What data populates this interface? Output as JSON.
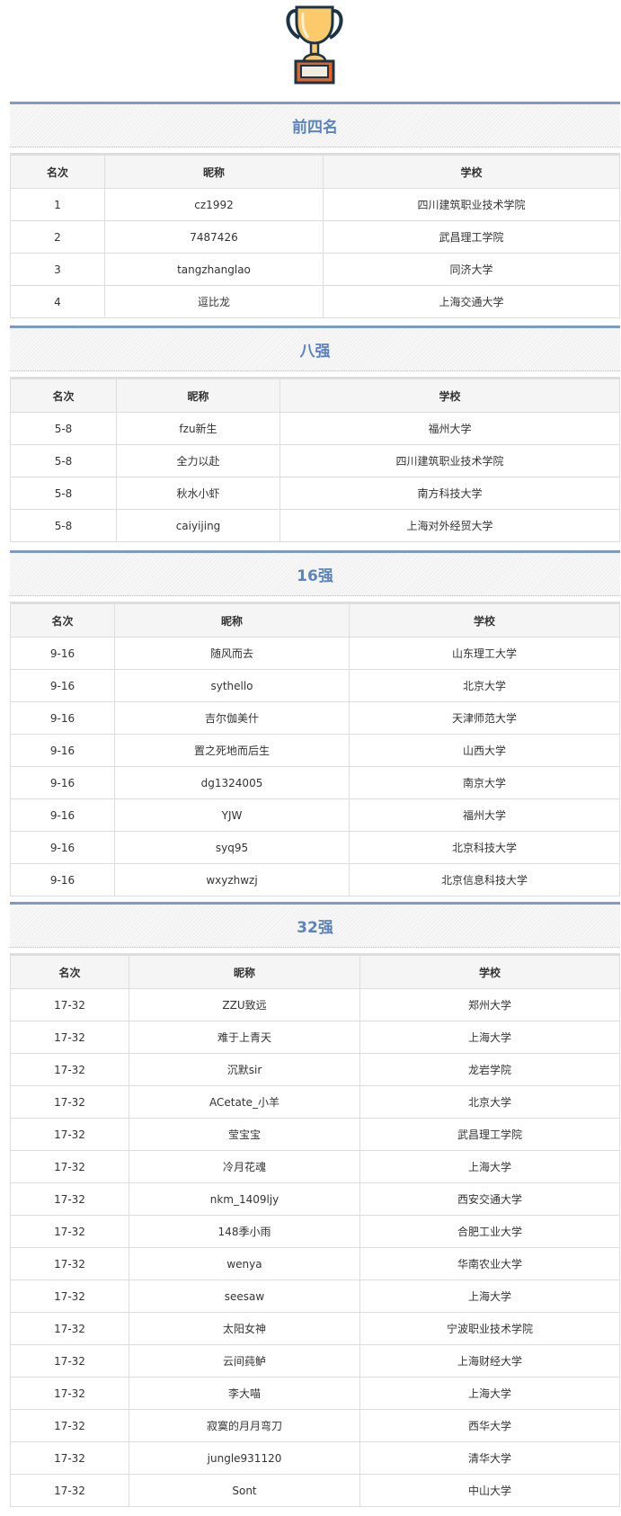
{
  "columns": [
    "名次",
    "昵称",
    "学校"
  ],
  "sections": [
    {
      "title": "前四名",
      "rows": [
        [
          "1",
          "cz1992",
          "四川建筑职业技术学院"
        ],
        [
          "2",
          "7487426",
          "武昌理工学院"
        ],
        [
          "3",
          "tangzhanglao",
          "同济大学"
        ],
        [
          "4",
          "逗比龙",
          "上海交通大学"
        ]
      ]
    },
    {
      "title": "八强",
      "rows": [
        [
          "5-8",
          "fzu新生",
          "福州大学"
        ],
        [
          "5-8",
          "全力以赴",
          "四川建筑职业技术学院"
        ],
        [
          "5-8",
          "秋水小虾",
          "南方科技大学"
        ],
        [
          "5-8",
          "caiyijing",
          "上海对外经贸大学"
        ]
      ]
    },
    {
      "title": "16强",
      "rows": [
        [
          "9-16",
          "随风而去",
          "山东理工大学"
        ],
        [
          "9-16",
          "sythello",
          "北京大学"
        ],
        [
          "9-16",
          "吉尔伽美什",
          "天津师范大学"
        ],
        [
          "9-16",
          "置之死地而后生",
          "山西大学"
        ],
        [
          "9-16",
          "dg1324005",
          "南京大学"
        ],
        [
          "9-16",
          "YJW",
          "福州大学"
        ],
        [
          "9-16",
          "syq95",
          "北京科技大学"
        ],
        [
          "9-16",
          "wxyzhwzj",
          "北京信息科技大学"
        ]
      ]
    },
    {
      "title": "32强",
      "rows": [
        [
          "17-32",
          "ZZU致远",
          "郑州大学"
        ],
        [
          "17-32",
          "难于上青天",
          "上海大学"
        ],
        [
          "17-32",
          "沉默sir",
          "龙岩学院"
        ],
        [
          "17-32",
          "ACetate_小羊",
          "北京大学"
        ],
        [
          "17-32",
          "莹宝宝",
          "武昌理工学院"
        ],
        [
          "17-32",
          "冷月花魂",
          "上海大学"
        ],
        [
          "17-32",
          "nkm_1409ljy",
          "西安交通大学"
        ],
        [
          "17-32",
          "148季小雨",
          "合肥工业大学"
        ],
        [
          "17-32",
          "wenya",
          "华南农业大学"
        ],
        [
          "17-32",
          "seesaw",
          "上海大学"
        ],
        [
          "17-32",
          "太阳女神",
          "宁波职业技术学院"
        ],
        [
          "17-32",
          "云间莼鲈",
          "上海财经大学"
        ],
        [
          "17-32",
          "李大喵",
          "上海大学"
        ],
        [
          "17-32",
          "寂寞的月月弯刀",
          "西华大学"
        ],
        [
          "17-32",
          "jungle931120",
          "清华大学"
        ],
        [
          "17-32",
          "Sont",
          "中山大学"
        ]
      ]
    }
  ],
  "colors": {
    "accent": "#5b84bd",
    "band_border": "#7d9bc1",
    "trophy_cup": "#fcc96b",
    "trophy_base": "#e0642a"
  }
}
